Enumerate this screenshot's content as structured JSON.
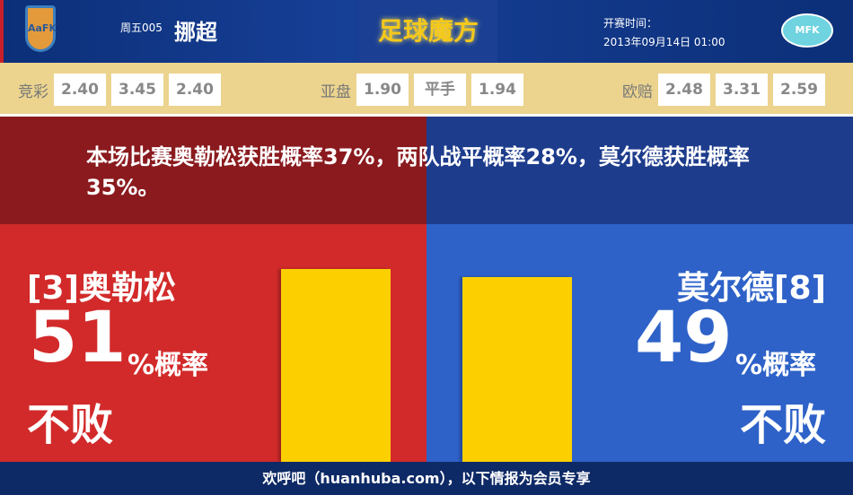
{
  "header": {
    "home_logo": "AaFK",
    "away_logo": "MFK",
    "week": "周五005",
    "league": "挪超",
    "brand": "足球魔方",
    "kickoff_label": "开赛时间：",
    "kickoff_time": "2013年09月14日 01:00"
  },
  "odds": {
    "jingcai": {
      "label": "竞彩",
      "values": [
        "2.40",
        "3.45",
        "2.40"
      ]
    },
    "yapan": {
      "label": "亚盘",
      "values": [
        "1.90",
        "平手",
        "1.94"
      ]
    },
    "oupei": {
      "label": "欧赔",
      "values": [
        "2.48",
        "3.31",
        "2.59"
      ]
    }
  },
  "summary": "本场比赛奥勒松获胜概率37%，两队战平概率28%，莫尔德获胜概率35%。",
  "home": {
    "name": "[3]奥勒松",
    "percent": "51",
    "percent_label": "%概率",
    "outcome": "不败",
    "bar_value": 51
  },
  "away": {
    "name": "莫尔德[8]",
    "percent": "49",
    "percent_label": "%概率",
    "outcome": "不败",
    "bar_value": 49
  },
  "colors": {
    "home_dark": "#8a1a1e",
    "away_dark": "#1d3c8c",
    "home": "#d22a2a",
    "away": "#2e62c8",
    "bar": "#fcd000"
  },
  "footer": "欢呼吧（huanhuba.com），以下情报为会员专享"
}
